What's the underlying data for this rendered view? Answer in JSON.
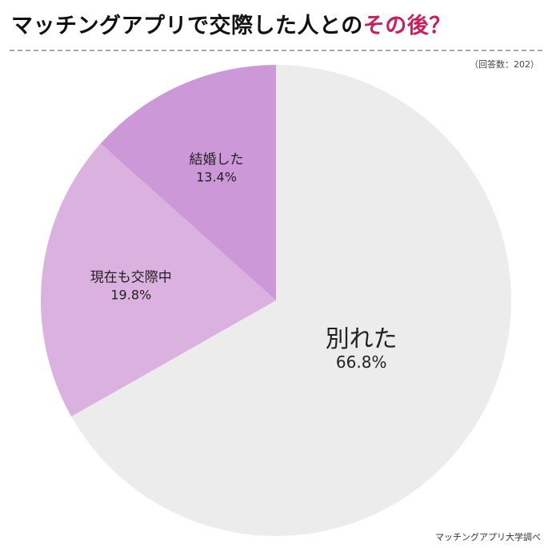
{
  "header": {
    "title_main": "マッチングアプリで交際した人との",
    "title_highlight": "その後？",
    "note": "（回答数：202）"
  },
  "footer": {
    "credit": "マッチングアプリ大学調べ"
  },
  "chart_data": {
    "type": "pie",
    "slices": [
      {
        "label": "別れた",
        "value": 66.8,
        "display": "66.8%",
        "color": "#ececec"
      },
      {
        "label": "現在も交際中",
        "value": 19.8,
        "display": "19.8%",
        "color": "#dbb1e0"
      },
      {
        "label": "結婚した",
        "value": 13.4,
        "display": "13.4%",
        "color": "#cd98d8"
      }
    ],
    "start": "12 o'clock",
    "direction": "clockwise"
  }
}
